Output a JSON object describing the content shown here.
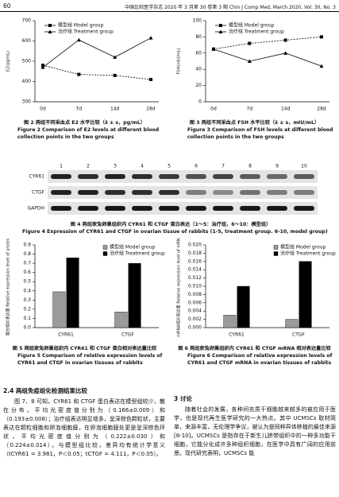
{
  "header": {
    "page_number": "60",
    "journal": "中国比较医学杂志 2020 年 3 月第 30 卷第 3 期  Chin J Comp Med, March 2020, Vol. 30, No. 3"
  },
  "chart_data": [
    {
      "type": "line",
      "ylabel": "E2(pg/mL)",
      "categories": [
        "0d",
        "7d",
        "14d",
        "28d"
      ],
      "ylim": [
        300,
        700
      ],
      "yticks": [
        300,
        400,
        500,
        600,
        700
      ],
      "series": [
        {
          "name": "模型组 Model group",
          "color": "#000000",
          "marker": "square",
          "values": [
            480,
            435,
            430,
            410
          ]
        },
        {
          "name": "治疗组 Treatment group",
          "color": "#000000",
          "marker": "triangle",
          "values": [
            470,
            605,
            520,
            615
          ]
        }
      ]
    },
    {
      "type": "line",
      "ylabel": "FSH(mIU/mL)",
      "categories": [
        "0d",
        "7d",
        "14d",
        "28d"
      ],
      "ylim": [
        0,
        100
      ],
      "yticks": [
        0,
        20,
        40,
        60,
        80,
        100
      ],
      "series": [
        {
          "name": "模型组 Model group",
          "color": "#000000",
          "marker": "square",
          "values": [
            65,
            72,
            76,
            80
          ]
        },
        {
          "name": "治疗组 Treatment group",
          "color": "#000000",
          "marker": "triangle",
          "values": [
            65,
            50,
            60,
            44
          ]
        }
      ]
    },
    {
      "type": "bar",
      "ylabel": "蛋白相对表达量 Relative expression level of protein",
      "categories": [
        "CYR61",
        "CTGF"
      ],
      "ylim": [
        0,
        0.9
      ],
      "yticks": [
        {
          "value": 0,
          "label": "0.0"
        },
        0.1,
        0.2,
        0.3,
        0.4,
        0.5,
        0.6,
        0.7,
        0.8,
        0.9
      ],
      "series": [
        {
          "name": "模型组 Model group",
          "color": "#9a9a9a",
          "values": [
            0.39,
            0.17
          ]
        },
        {
          "name": "治疗组 Treatment group",
          "color": "#000000",
          "values": [
            0.76,
            0.7
          ]
        }
      ]
    },
    {
      "type": "bar",
      "ylabel": "mRNA相对表达量 Relative expression level of mRNA",
      "categories": [
        "CYR61",
        "CTGF"
      ],
      "ylim": [
        0,
        0.02
      ],
      "yticks": [
        {
          "value": 0,
          "label": "0.000"
        },
        0.002,
        0.004,
        0.006,
        0.008,
        {
          "value": 0.01,
          "label": "0.010"
        },
        0.012,
        0.014,
        0.016,
        0.018,
        {
          "value": 0.02,
          "label": "0.020"
        }
      ],
      "series": [
        {
          "name": "模型组 Model group",
          "color": "#9a9a9a",
          "values": [
            0.003,
            0.002
          ]
        },
        {
          "name": "治疗组 Treatment group",
          "color": "#000000",
          "values": [
            0.01,
            0.016
          ]
        }
      ]
    }
  ],
  "captions": [
    {
      "cn": "图 2  两组不同采血点 E2 水平比较（x̄ ± s，pg/mL）",
      "en": "Figure 2  Comparison of E2 levels at different blood collection points in the two groups"
    },
    {
      "cn": "图 3  两组不同采血点 FSH 水平比较（x̄ ± s，mIU/mL）",
      "en": "Figure 3  Comparison of FSH levels at different blood collection points in the two groups"
    },
    {
      "cn": "图 5  两组家兔卵巢组织内 CYR61 和 CTGF 蛋白相对表达量比较",
      "en": "Figure 5  Comparison of relative expression levels of CYR61 and CTGF in ovarian tissues of rabbits"
    },
    {
      "cn": "图 6  两组家兔卵巢组织内 CYR61 和 CTGF mRNA 相对表达量比较",
      "en": "Figure 6  Comparison of relative expression levels of CYR61 and CTGF mRNA in ovarian tissues of rabbits"
    }
  ],
  "blot": {
    "lanes": [
      "1",
      "2",
      "3",
      "4",
      "5",
      "6",
      "7",
      "8",
      "9",
      "10"
    ],
    "rows": [
      "CYR61",
      "CTGF",
      "GAPDH"
    ],
    "caption_cn": "图 4  两组家兔卵巢组织内 CYR61 和 CTGF 蛋白表达（1～5：治疗组，6～10：模型组）",
    "caption_en": "Figure 4  Expression of CYR61 and CTGF in ovarian tissue of rabbits (1-5, treatment group. 6-10, model group)"
  },
  "sections": [
    {
      "heading": "2.4  两组免疫组化检测结果比较",
      "text": "图 7、8 可知，CYR61 和 CTGF 蛋白表达在模型组较少，散在分布，平均光密度值分别为（0.166±0.009）和（0.193±0.008）；治疗组表达明显增多，呈深棕色颗粒状，主要表达在颗粒细胞和卵泡细胞膜，在卵泡细胞膜处更是呈深棕色环状，平均光密度值分别为（0.222±0.030）和（0.224±0.014），与模型组比较，差异均有统计学意义（tCYR61 = 3.981，P＜0.05；tCTGF = 4.111，P＜0.05）。"
    },
    {
      "heading": "3  讨论",
      "text": "随着社会的发展，各种间充质干细胞越来越多的被应用于医学，也是现代再生医学研究的一大热点。其中 UCMSCs 取材简单，来源丰富，无伦理学争议，被认为是同种异体移植的最佳来源[8-10]。UCMSCs 是指存在于新生儿脐带组织中的一种多功能干细胞，它能分化成许多种组织细胞，在医学中具有广阔的应用前景。现代研究表明，UCMSCs 能"
    }
  ]
}
